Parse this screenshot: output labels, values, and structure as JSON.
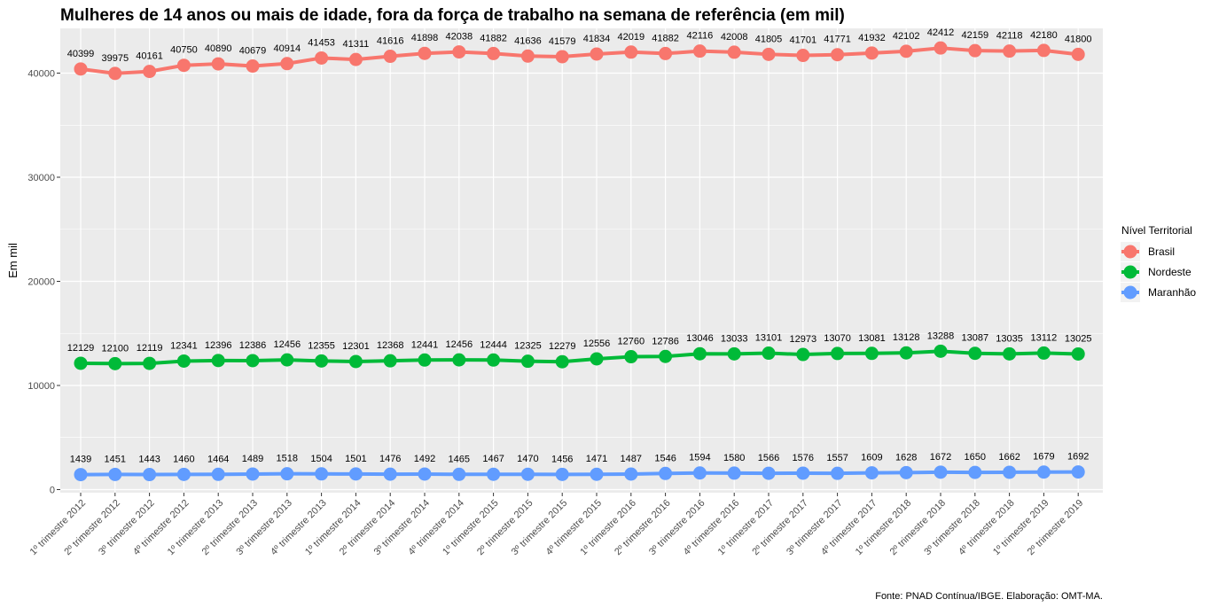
{
  "chart_data": {
    "type": "line",
    "title": "Mulheres de 14 anos ou mais de idade, fora da força de trabalho na semana de referência (em mil)",
    "xlabel": "",
    "ylabel": "Em mil",
    "ylim": [
      -300,
      44300
    ],
    "yticks": [
      0,
      10000,
      20000,
      30000,
      40000
    ],
    "grid": true,
    "legend_title": "Nível Territorial",
    "legend_position": "right",
    "caption": "Fonte: PNAD Contínua/IBGE. Elaboração: OMT-MA.",
    "categories": [
      "1º trimestre 2012",
      "2º trimestre 2012",
      "3º trimestre 2012",
      "4º trimestre 2012",
      "1º trimestre 2013",
      "2º trimestre 2013",
      "3º trimestre 2013",
      "4º trimestre 2013",
      "1º trimestre 2014",
      "2º trimestre 2014",
      "3º trimestre 2014",
      "4º trimestre 2014",
      "1º trimestre 2015",
      "2º trimestre 2015",
      "3º trimestre 2015",
      "4º trimestre 2015",
      "1º trimestre 2016",
      "2º trimestre 2016",
      "3º trimestre 2016",
      "4º trimestre 2016",
      "1º trimestre 2017",
      "2º trimestre 2017",
      "3º trimestre 2017",
      "4º trimestre 2017",
      "1º trimestre 2018",
      "2º trimestre 2018",
      "3º trimestre 2018",
      "4º trimestre 2018",
      "1º trimestre 2019",
      "2º trimestre 2019"
    ],
    "series": [
      {
        "name": "Brasil",
        "color": "#F8766D",
        "values": [
          40399,
          39975,
          40161,
          40750,
          40890,
          40679,
          40914,
          41453,
          41311,
          41616,
          41898,
          42038,
          41882,
          41636,
          41579,
          41834,
          42019,
          41882,
          42116,
          42008,
          41805,
          41701,
          41771,
          41932,
          42102,
          42412,
          42159,
          42118,
          42180,
          41800
        ]
      },
      {
        "name": "Nordeste",
        "color": "#00BA38",
        "values": [
          12129,
          12100,
          12119,
          12341,
          12396,
          12386,
          12456,
          12355,
          12301,
          12368,
          12441,
          12456,
          12444,
          12325,
          12279,
          12556,
          12760,
          12786,
          13046,
          13033,
          13101,
          12973,
          13070,
          13081,
          13128,
          13288,
          13087,
          13035,
          13112,
          13025
        ]
      },
      {
        "name": "Maranhão",
        "color": "#619CFF",
        "values": [
          1439,
          1451,
          1443,
          1460,
          1464,
          1489,
          1518,
          1504,
          1501,
          1476,
          1492,
          1465,
          1467,
          1470,
          1456,
          1471,
          1487,
          1546,
          1594,
          1580,
          1566,
          1576,
          1557,
          1609,
          1628,
          1672,
          1650,
          1662,
          1679,
          1692
        ]
      }
    ]
  }
}
